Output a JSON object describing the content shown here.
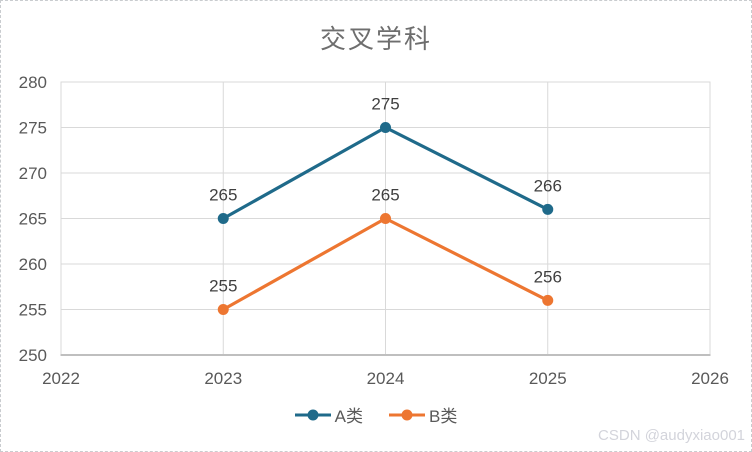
{
  "watermark": "CSDN @audyxiao001",
  "chart_data": {
    "type": "line",
    "title": "交叉学科",
    "x": [
      2023,
      2024,
      2025
    ],
    "categories": [
      "2023",
      "2024",
      "2025"
    ],
    "series": [
      {
        "name": "A类",
        "values": [
          265,
          275,
          266
        ],
        "color": "#1F6A8A"
      },
      {
        "name": "B类",
        "values": [
          255,
          265,
          256
        ],
        "color": "#ED7631"
      }
    ],
    "xlim": [
      2022,
      2026
    ],
    "ylim": [
      250,
      280
    ],
    "x_ticks": [
      2022,
      2023,
      2024,
      2025,
      2026
    ],
    "y_tick_step": 5,
    "grid": true,
    "data_labels": true,
    "legend_position": "bottom",
    "colors": {
      "grid": "#D9D9D9",
      "axis": "#BFBFBF",
      "title": "#6E6E6E",
      "tick": "#595959",
      "label": "#404040",
      "watermark": "#D3D4DB"
    }
  }
}
